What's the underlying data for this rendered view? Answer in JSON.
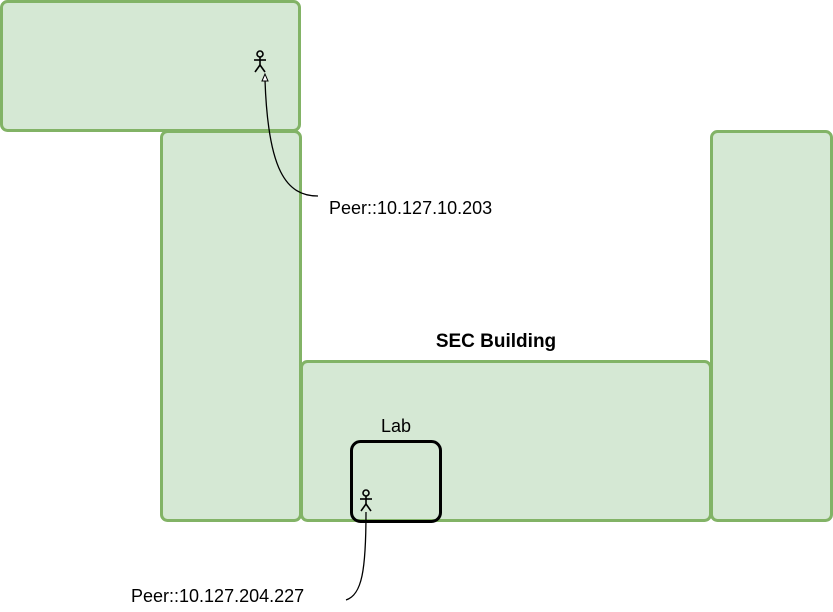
{
  "diagram": {
    "building_title": "SEC Building",
    "room_label": "Lab",
    "peers": [
      {
        "label": "Peer::10.127.10.203",
        "icon": "person-icon"
      },
      {
        "label": "Peer::10.127.204.227",
        "icon": "person-icon"
      }
    ]
  },
  "colors": {
    "wing_fill": "#d5e8d4",
    "wing_stroke": "#82b366",
    "room_stroke": "#000000",
    "text": "#000000"
  }
}
